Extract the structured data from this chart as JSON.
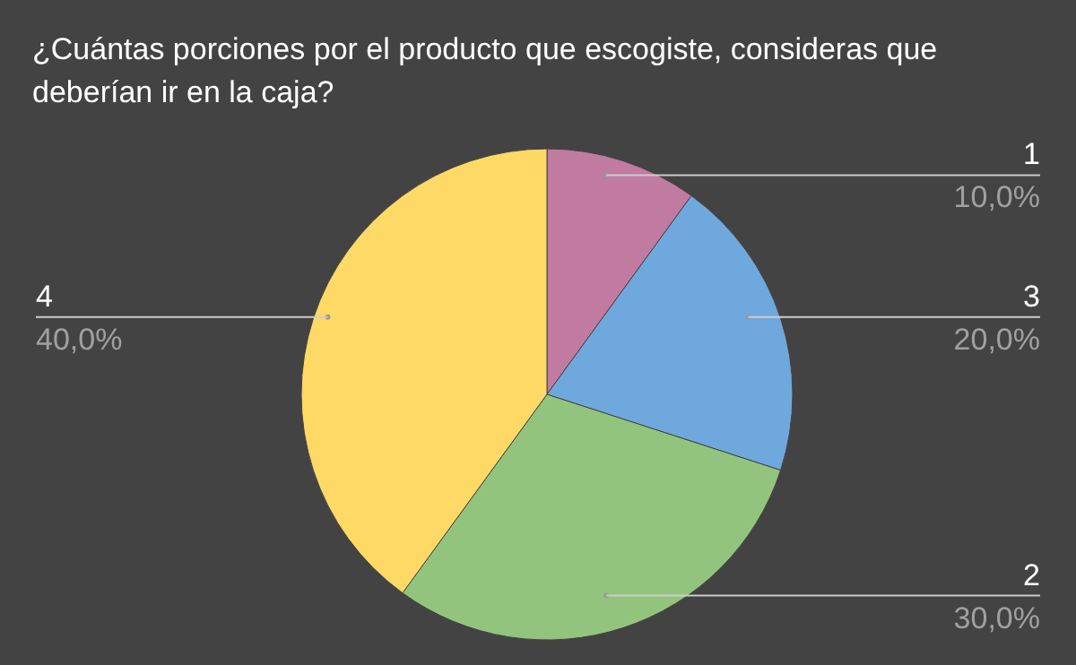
{
  "chart_data": {
    "type": "pie",
    "title": "¿Cuántas porciones por el producto que escogiste, consideras que deberían ir en la caja?",
    "categories": [
      "1",
      "3",
      "2",
      "4"
    ],
    "values": [
      10,
      20,
      30,
      40
    ],
    "value_labels": [
      "10,0%",
      "20,0%",
      "30,0%",
      "40,0%"
    ],
    "colors": [
      "#c27ba0",
      "#6fa8dc",
      "#93c47d",
      "#ffd966"
    ]
  }
}
